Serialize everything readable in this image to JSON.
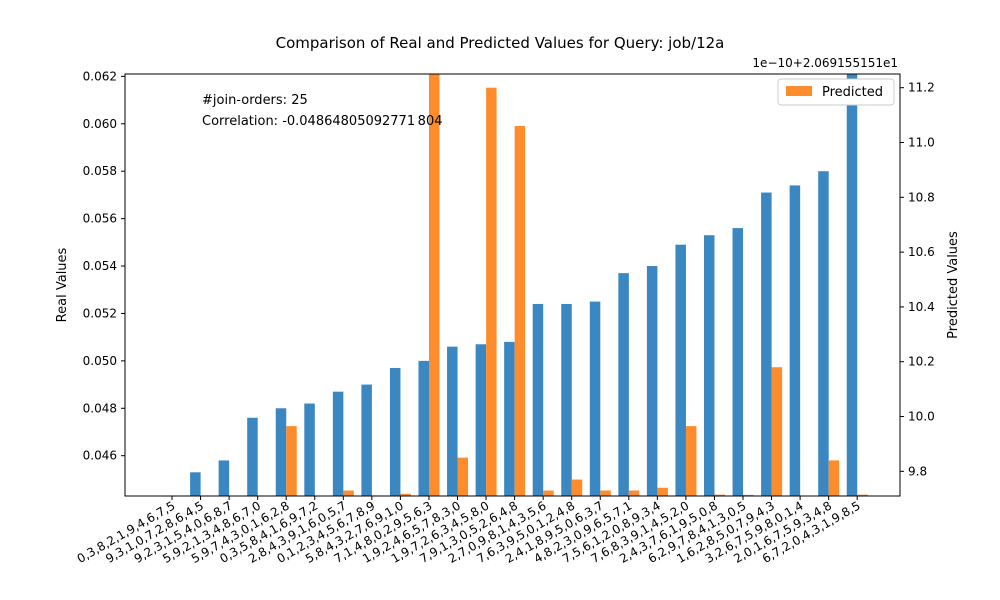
{
  "chart_data": {
    "type": "bar",
    "title": "Comparison of Real and Predicted Values for Query: job/12a",
    "ylabel_left": "Real Values",
    "ylabel_right": "Predicted Values",
    "right_offset_text": "1e−10+2.069155151e1",
    "annotation_1": "#join-orders: 25",
    "annotation_2": "Correlation: -0.04864805092771 804",
    "legend": {
      "label": "Predicted",
      "position": "top-right"
    },
    "ylim_left": [
      0.0443,
      0.0621
    ],
    "ylim_right": [
      9.71,
      11.25
    ],
    "yticks_left": [
      "0.046",
      "0.048",
      "0.050",
      "0.052",
      "0.054",
      "0.056",
      "0.058",
      "0.060",
      "0.062"
    ],
    "yticks_right": [
      "9.8",
      "10.0",
      "10.2",
      "10.4",
      "10.6",
      "10.8",
      "11.0",
      "11.2"
    ],
    "categories": [
      "0,3,8,2,1,9,4,6,7,5",
      "9,3,1,0,7,2,8,6,4,5",
      "9,2,3,1,5,4,0,6,8,7",
      "5,9,2,1,3,4,8,6,7,0",
      "5,9,7,4,3,0,1,6,2,8",
      "0,3,5,8,4,1,6,9,7,2",
      "2,8,4,3,9,1,6,0,5,7",
      "0,1,2,3,4,5,6,7,8,9",
      "5,8,4,3,2,7,6,9,1,0",
      "7,1,4,8,0,2,9,5,6,3",
      "1,9,2,4,6,5,7,8,3,0",
      "1,9,7,2,6,3,4,5,8,0",
      "7,9,1,3,0,5,2,6,4,8",
      "2,7,0,9,8,1,4,3,5,6",
      "7,6,3,9,5,0,1,2,4,8",
      "2,4,1,8,9,5,0,6,3,7",
      "4,8,2,3,0,9,6,5,7,1",
      "7,5,6,1,2,0,8,9,3,4",
      "7,6,8,3,9,1,4,5,2,0",
      "2,4,3,7,6,1,9,5,0,8",
      "6,2,9,7,8,4,1,3,0,5",
      "1,6,2,8,5,0,7,9,4,3",
      "3,2,6,7,5,9,8,0,1,4",
      "2,0,1,6,7,5,9,3,4,8",
      "6,7,2,0,4,3,1,9,8,5"
    ],
    "series": [
      {
        "values": [
          0.0443,
          0.0453,
          0.0458,
          0.0476,
          0.048,
          0.0482,
          0.0487,
          0.049,
          0.0497,
          0.05,
          0.0506,
          0.0507,
          0.0508,
          0.0524,
          0.0524,
          0.0525,
          0.0537,
          0.054,
          0.0549,
          0.0553,
          0.0556,
          0.0571,
          0.0574,
          0.058,
          0.0621
        ]
      },
      {
        "name": "Predicted",
        "values": [
          9.71,
          9.71,
          9.71,
          9.71,
          9.965,
          9.71,
          9.73,
          9.712,
          9.718,
          11.25,
          9.85,
          11.2,
          11.06,
          9.73,
          9.77,
          9.73,
          9.73,
          9.74,
          9.965,
          9.715,
          9.714,
          10.18,
          9.71,
          9.84,
          9.715
        ]
      }
    ],
    "colors": {
      "real": "#3a87c1",
      "predicted": "#fd8c2c"
    }
  }
}
